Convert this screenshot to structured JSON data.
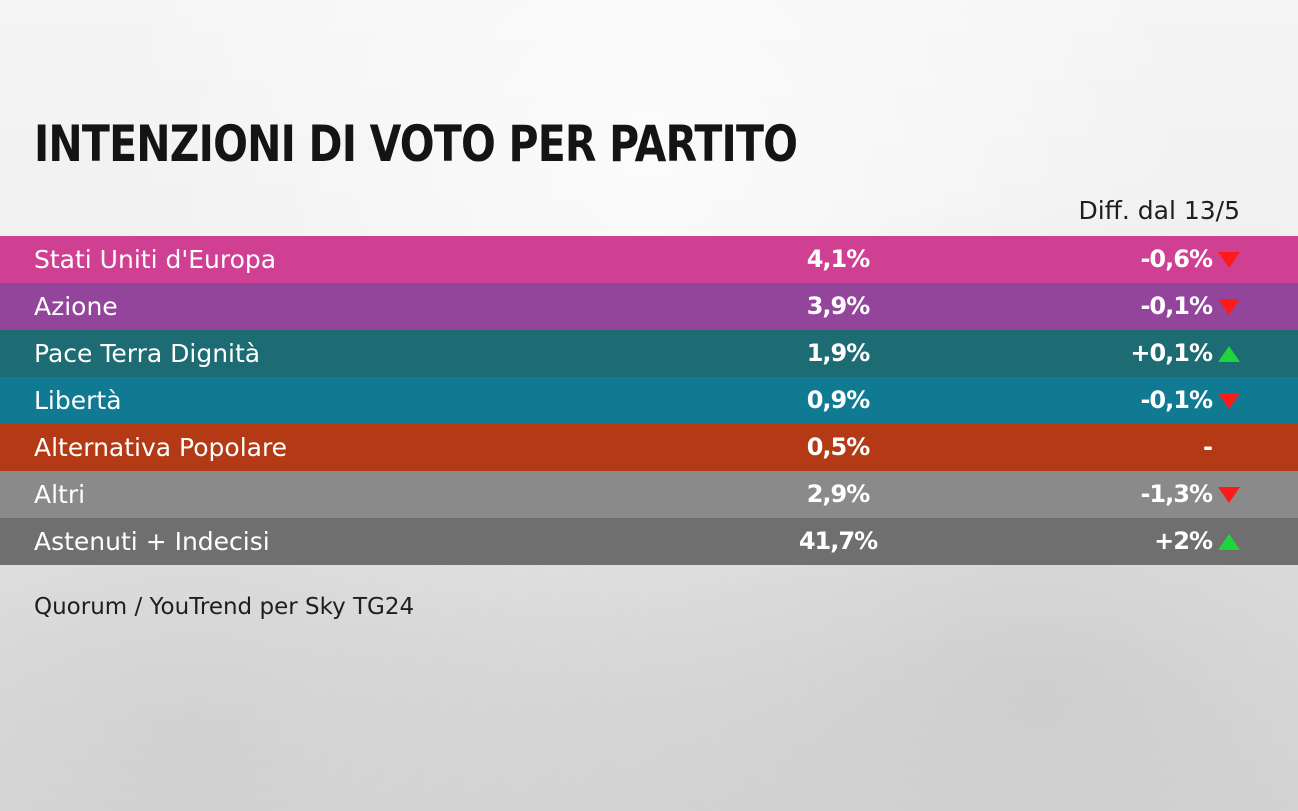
{
  "title": "INTENZIONI DI VOTO PER PARTITO",
  "diff_header": "Diff. dal 13/5",
  "source": "Quorum / YouTrend per Sky TG24",
  "chart_data": {
    "type": "table",
    "title": "INTENZIONI DI VOTO PER PARTITO",
    "columns": [
      "",
      "",
      "Diff. dal 13/5"
    ],
    "rows": [
      {
        "party": "Stati Uniti d'Europa",
        "value": "4,1%",
        "diff": "-0,6%",
        "trend": "down",
        "color": "#cf3f92"
      },
      {
        "party": "Azione",
        "value": "3,9%",
        "diff": "-0,1%",
        "trend": "down",
        "color": "#93459c"
      },
      {
        "party": "Pace Terra Dignità",
        "value": "1,9%",
        "diff": "+0,1%",
        "trend": "up",
        "color": "#1d6b73"
      },
      {
        "party": "Libertà",
        "value": "0,9%",
        "diff": "-0,1%",
        "trend": "down",
        "color": "#117a93"
      },
      {
        "party": "Alternativa Popolare",
        "value": "0,5%",
        "diff": "-",
        "trend": "none",
        "color": "#b33a14"
      },
      {
        "party": "Altri",
        "value": "2,9%",
        "diff": "-1,3%",
        "trend": "down",
        "color": "#8a8a8a"
      },
      {
        "party": "Astenuti + Indecisi",
        "value": "41,7%",
        "diff": "+2%",
        "trend": "up",
        "color": "#6f6f6f"
      }
    ],
    "source": "Quorum / YouTrend per Sky TG24"
  }
}
